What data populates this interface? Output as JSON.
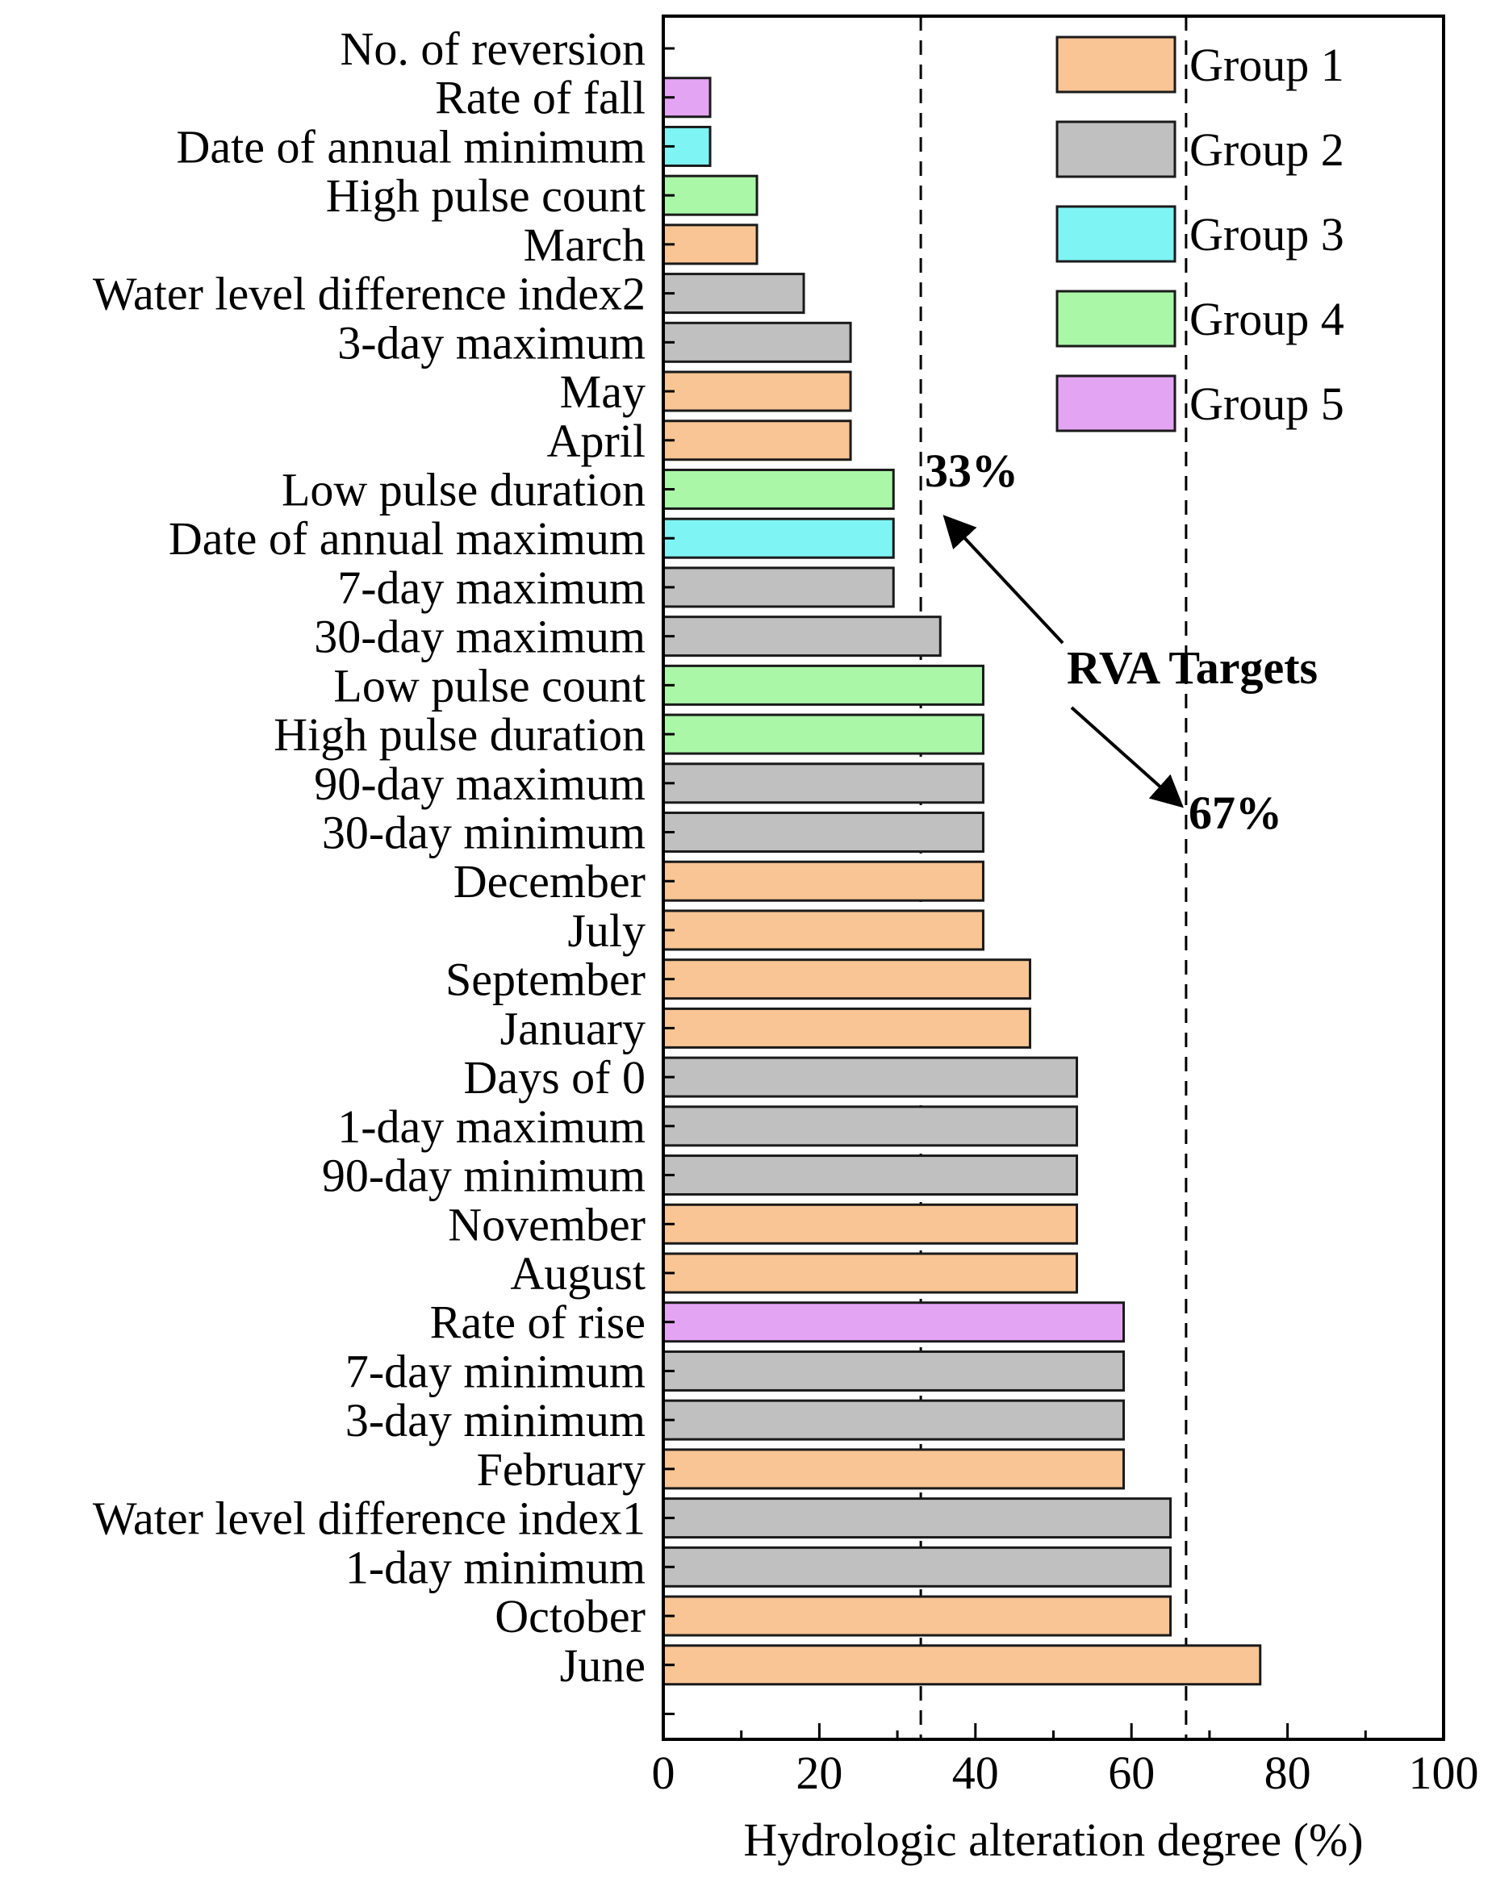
{
  "chart_data": {
    "type": "bar",
    "orientation": "horizontal",
    "xlabel": "Hydrologic alteration degree (%)",
    "ylabel": "",
    "xlim": [
      0,
      100
    ],
    "xticks": [
      0,
      20,
      40,
      60,
      80,
      100
    ],
    "legend_position": "top-right",
    "groups": [
      {
        "name": "Group 1",
        "color": "#f9c594"
      },
      {
        "name": "Group 2",
        "color": "#c0c0c0"
      },
      {
        "name": "Group 3",
        "color": "#7ff4f4"
      },
      {
        "name": "Group 4",
        "color": "#aaf7a8"
      },
      {
        "name": "Group 5",
        "color": "#e4a4f4"
      }
    ],
    "bars": [
      {
        "label": "No. of reversion",
        "value": 0,
        "group": null
      },
      {
        "label": "Rate of fall",
        "value": 6,
        "group": "Group 5"
      },
      {
        "label": "Date of annual minimum",
        "value": 6,
        "group": "Group 3"
      },
      {
        "label": "High pulse count",
        "value": 12,
        "group": "Group 4"
      },
      {
        "label": "March",
        "value": 12,
        "group": "Group 1"
      },
      {
        "label": "Water level difference index2",
        "value": 18,
        "group": "Group 2"
      },
      {
        "label": "3-day maximum",
        "value": 24,
        "group": "Group 2"
      },
      {
        "label": "May",
        "value": 24,
        "group": "Group 1"
      },
      {
        "label": "April",
        "value": 24,
        "group": "Group 1"
      },
      {
        "label": "Low pulse duration",
        "value": 29.5,
        "group": "Group 4"
      },
      {
        "label": "Date of annual maximum",
        "value": 29.5,
        "group": "Group 3"
      },
      {
        "label": "7-day maximum",
        "value": 29.5,
        "group": "Group 2"
      },
      {
        "label": "30-day maximum",
        "value": 35.5,
        "group": "Group 2"
      },
      {
        "label": "Low pulse count",
        "value": 41,
        "group": "Group 4"
      },
      {
        "label": "High pulse duration",
        "value": 41,
        "group": "Group 4"
      },
      {
        "label": "90-day maximum",
        "value": 41,
        "group": "Group 2"
      },
      {
        "label": "30-day minimum",
        "value": 41,
        "group": "Group 2"
      },
      {
        "label": "December",
        "value": 41,
        "group": "Group 1"
      },
      {
        "label": "July",
        "value": 41,
        "group": "Group 1"
      },
      {
        "label": "September",
        "value": 47,
        "group": "Group 1"
      },
      {
        "label": "January",
        "value": 47,
        "group": "Group 1"
      },
      {
        "label": "Days of 0",
        "value": 53,
        "group": "Group 2"
      },
      {
        "label": "1-day maximum",
        "value": 53,
        "group": "Group 2"
      },
      {
        "label": "90-day minimum",
        "value": 53,
        "group": "Group 2"
      },
      {
        "label": "November ",
        "value": 53,
        "group": "Group 1"
      },
      {
        "label": "August ",
        "value": 53,
        "group": "Group 1"
      },
      {
        "label": "Rate of rise",
        "value": 59,
        "group": "Group 5"
      },
      {
        "label": "7-day minimum",
        "value": 59,
        "group": "Group 2"
      },
      {
        "label": "3-day minimum",
        "value": 59,
        "group": "Group 2"
      },
      {
        "label": "February",
        "value": 59,
        "group": "Group 1"
      },
      {
        "label": "Water level difference index1",
        "value": 65,
        "group": "Group 2"
      },
      {
        "label": "1-day minimum",
        "value": 65,
        "group": "Group 2"
      },
      {
        "label": "October",
        "value": 65,
        "group": "Group 1"
      },
      {
        "label": "June",
        "value": 76.5,
        "group": "Group 1"
      }
    ],
    "reference_lines": [
      33,
      67
    ],
    "annotations": {
      "low_target_label": "33%",
      "high_target_label": "67%",
      "targets_label": "RVA Targets"
    }
  }
}
